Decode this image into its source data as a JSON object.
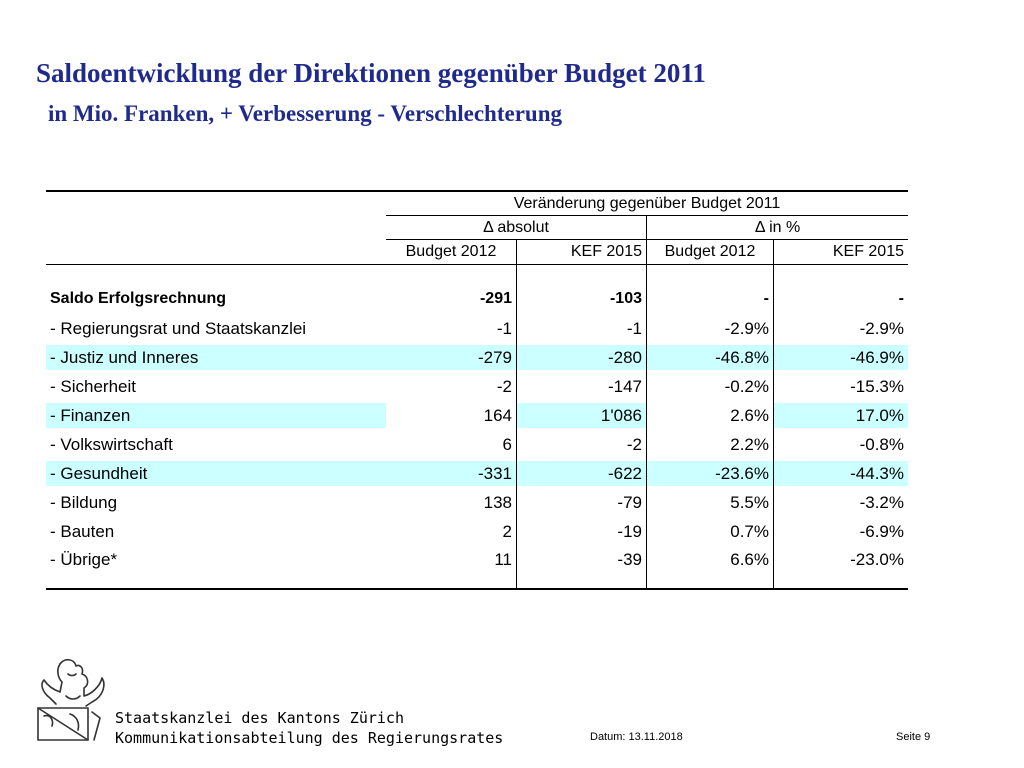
{
  "title": "Saldoentwicklung der Direktionen gegenüber Budget 2011",
  "subtitle": "in Mio. Franken, + Verbesserung - Verschlechterung",
  "table": {
    "header_group": "Veränderung gegenüber Budget 2011",
    "abs_group": "Δ absolut",
    "pct_group": "Δ in %",
    "columns": [
      "Budget 2012",
      "KEF 2015",
      "Budget 2012",
      "KEF 2015"
    ],
    "rows": [
      {
        "label": "Saldo Erfolgsrechnung",
        "values": [
          "-291",
          "-103",
          "-",
          "-"
        ]
      },
      {
        "label": "- Regierungsrat und Staatskanzlei",
        "values": [
          "-1",
          "-1",
          "-2.9%",
          "-2.9%"
        ]
      },
      {
        "label": "- Justiz und Inneres",
        "values": [
          "-279",
          "-280",
          "-46.8%",
          "-46.9%"
        ]
      },
      {
        "label": "- Sicherheit",
        "values": [
          "-2",
          "-147",
          "-0.2%",
          "-15.3%"
        ]
      },
      {
        "label": "- Finanzen",
        "values": [
          "164",
          "1'086",
          "2.6%",
          "17.0%"
        ]
      },
      {
        "label": "- Volkswirtschaft",
        "values": [
          "6",
          "-2",
          "2.2%",
          "-0.8%"
        ]
      },
      {
        "label": "- Gesundheit",
        "values": [
          "-331",
          "-622",
          "-23.6%",
          "-44.3%"
        ]
      },
      {
        "label": "- Bildung",
        "values": [
          "138",
          "-79",
          "5.5%",
          "-3.2%"
        ]
      },
      {
        "label": "- Bauten",
        "values": [
          "2",
          "-19",
          "0.7%",
          "-6.9%"
        ]
      },
      {
        "label": "- Übrige*",
        "values": [
          "11",
          "-39",
          "6.6%",
          "-23.0%"
        ]
      }
    ]
  },
  "footer": {
    "org_line1": "Staatskanzlei des Kantons Zürich",
    "org_line2": "Kommunikationsabteilung des Regierungsrates",
    "date": "Datum: 13.11.2018",
    "page": "Seite 9"
  },
  "colors": {
    "title": "#1f2a8c",
    "highlight": "#ccffff"
  }
}
